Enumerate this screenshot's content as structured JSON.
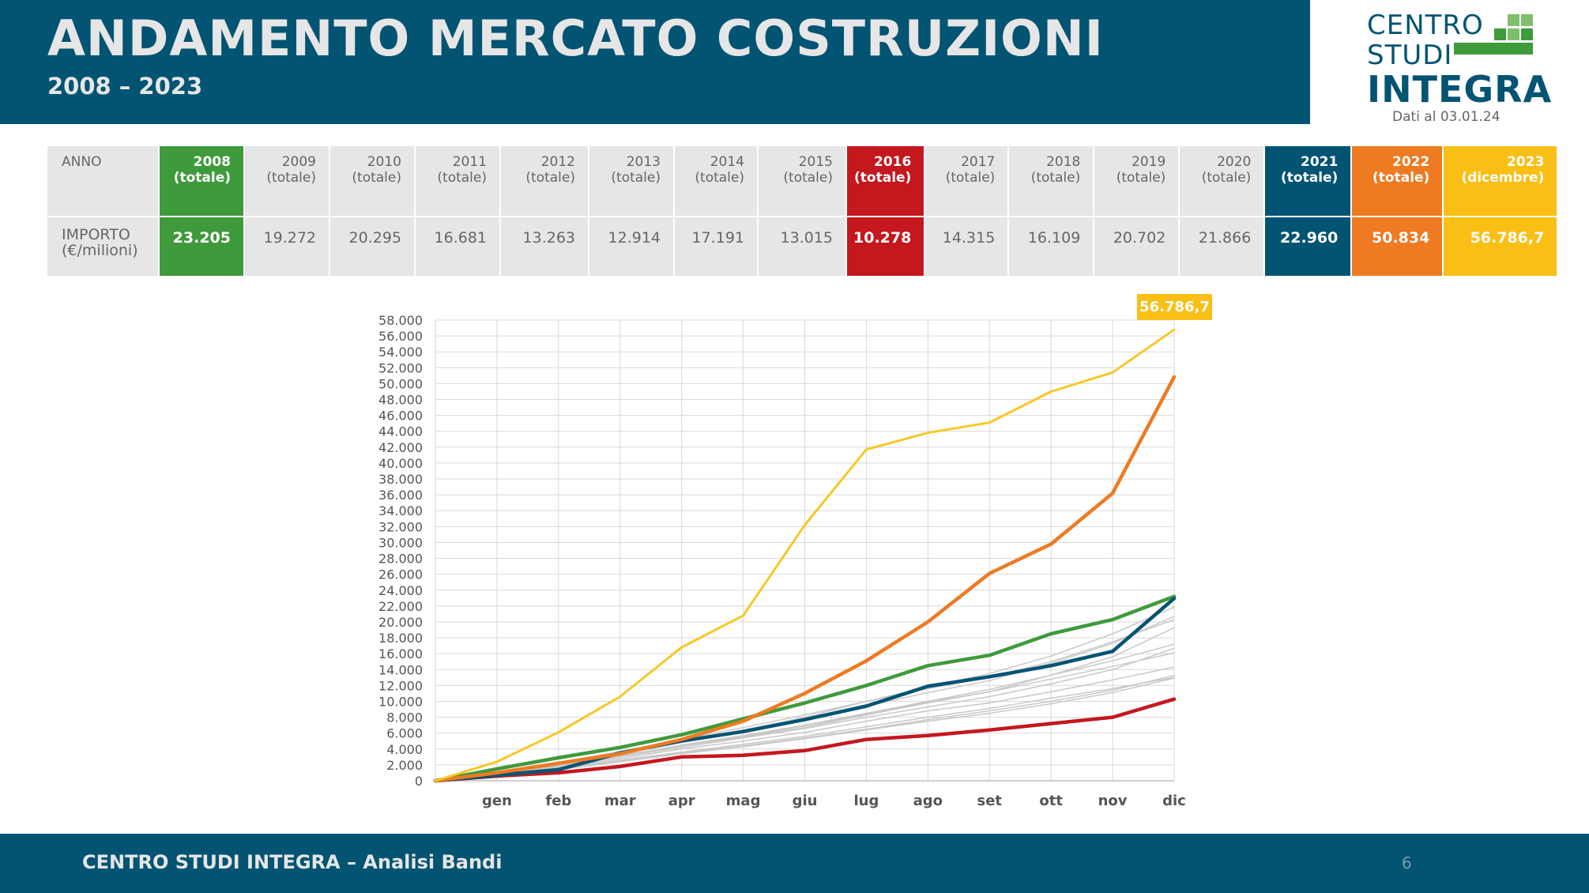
{
  "header": {
    "title": "ANDAMENTO MERCATO COSTRUZIONI",
    "subtitle": "2008 – 2023"
  },
  "logo": {
    "line1": "CENTRO",
    "line2": "STUDI",
    "line3": "INTEGRA",
    "date": "Dati al 03.01.24"
  },
  "table": {
    "label_year": "ANNO",
    "label_amount_1": "IMPORTO",
    "label_amount_2": "(€/milioni)",
    "columns": [
      {
        "year": "2008",
        "note": "(totale)",
        "value": "23.205"
      },
      {
        "year": "2009",
        "note": "(totale)",
        "value": "19.272"
      },
      {
        "year": "2010",
        "note": "(totale)",
        "value": "20.295"
      },
      {
        "year": "2011",
        "note": "(totale)",
        "value": "16.681"
      },
      {
        "year": "2012",
        "note": "(totale)",
        "value": "13.263"
      },
      {
        "year": "2013",
        "note": "(totale)",
        "value": "12.914"
      },
      {
        "year": "2014",
        "note": "(totale)",
        "value": "17.191"
      },
      {
        "year": "2015",
        "note": "(totale)",
        "value": "13.015"
      },
      {
        "year": "2016",
        "note": "(totale)",
        "value": "10.278"
      },
      {
        "year": "2017",
        "note": "(totale)",
        "value": "14.315"
      },
      {
        "year": "2018",
        "note": "(totale)",
        "value": "16.109"
      },
      {
        "year": "2019",
        "note": "(totale)",
        "value": "20.702"
      },
      {
        "year": "2020",
        "note": "(totale)",
        "value": "21.866"
      },
      {
        "year": "2021",
        "note": "(totale)",
        "value": "22.960"
      },
      {
        "year": "2022",
        "note": "(totale)",
        "value": "50.834"
      },
      {
        "year": "2023",
        "note": "(dicembre)",
        "value": "56.786,7"
      }
    ]
  },
  "chart_data": {
    "type": "line",
    "title": "",
    "xlabel": "",
    "ylabel": "",
    "categories": [
      "",
      "gen",
      "feb",
      "mar",
      "apr",
      "mag",
      "giu",
      "lug",
      "ago",
      "set",
      "ott",
      "nov",
      "dic"
    ],
    "ylim": [
      0,
      58000
    ],
    "ytick_step": 2000,
    "ytick_labels": [
      "0",
      "2.000",
      "4.000",
      "6.000",
      "8.000",
      "10.000",
      "12.000",
      "14.000",
      "16.000",
      "18.000",
      "20.000",
      "22.000",
      "24.000",
      "26.000",
      "28.000",
      "30.000",
      "32.000",
      "34.000",
      "36.000",
      "38.000",
      "40.000",
      "42.000",
      "44.000",
      "46.000",
      "48.000",
      "50.000",
      "52.000",
      "54.000",
      "56.000",
      "58.000"
    ],
    "grid": true,
    "callout": {
      "series": "2023",
      "label": "56.786,7"
    },
    "series": [
      {
        "name": "2009",
        "color": "#c8c8c8",
        "highlight": false,
        "values": [
          0,
          900,
          2000,
          3200,
          4400,
          5500,
          6700,
          8300,
          9800,
          11200,
          13300,
          15600,
          19272
        ]
      },
      {
        "name": "2010",
        "color": "#c8c8c8",
        "highlight": false,
        "values": [
          0,
          1000,
          2200,
          3600,
          5000,
          6400,
          8000,
          10000,
          11600,
          13000,
          15000,
          17500,
          20295
        ]
      },
      {
        "name": "2011",
        "color": "#c8c8c8",
        "highlight": false,
        "values": [
          0,
          800,
          1800,
          3000,
          4200,
          5400,
          6600,
          8000,
          9300,
          10600,
          12200,
          14000,
          16681
        ]
      },
      {
        "name": "2012",
        "color": "#c8c8c8",
        "highlight": false,
        "values": [
          0,
          700,
          1500,
          2500,
          3500,
          4400,
          5400,
          6500,
          7700,
          8800,
          10000,
          11400,
          13263
        ]
      },
      {
        "name": "2013",
        "color": "#c8c8c8",
        "highlight": false,
        "values": [
          0,
          600,
          1400,
          2400,
          3400,
          4300,
          5300,
          6400,
          7500,
          8500,
          9700,
          11100,
          12914
        ]
      },
      {
        "name": "2014",
        "color": "#c8c8c8",
        "highlight": false,
        "values": [
          0,
          800,
          1900,
          3100,
          4500,
          5700,
          7000,
          8500,
          10000,
          11500,
          13300,
          15100,
          17191
        ]
      },
      {
        "name": "2015",
        "color": "#c8c8c8",
        "highlight": false,
        "values": [
          0,
          700,
          1600,
          2600,
          3600,
          4600,
          5600,
          6800,
          8000,
          9100,
          10400,
          11600,
          13015
        ]
      },
      {
        "name": "2017",
        "color": "#c8c8c8",
        "highlight": false,
        "values": [
          0,
          700,
          1700,
          2800,
          4000,
          5000,
          6100,
          7500,
          8800,
          9800,
          11200,
          12700,
          14315
        ]
      },
      {
        "name": "2018",
        "color": "#c8c8c8",
        "highlight": false,
        "values": [
          0,
          800,
          1900,
          3100,
          4400,
          5600,
          6900,
          8400,
          9900,
          11200,
          12800,
          14400,
          16109
        ]
      },
      {
        "name": "2019",
        "color": "#c8c8c8",
        "highlight": false,
        "values": [
          0,
          900,
          2100,
          3400,
          4900,
          6300,
          7700,
          9400,
          11100,
          12600,
          14800,
          17300,
          20702
        ]
      },
      {
        "name": "2020",
        "color": "#c8c8c8",
        "highlight": false,
        "values": [
          0,
          1000,
          2300,
          3700,
          5200,
          6700,
          8300,
          10000,
          11800,
          13500,
          15700,
          18500,
          21866
        ]
      },
      {
        "name": "2016",
        "color": "#c5171e",
        "highlight": true,
        "values": [
          0,
          600,
          1000,
          1800,
          3000,
          3200,
          3800,
          5200,
          5700,
          6400,
          7200,
          8000,
          10278
        ]
      },
      {
        "name": "2008",
        "color": "#3f9a3c",
        "highlight": true,
        "values": [
          0,
          1500,
          2900,
          4200,
          5800,
          7800,
          9800,
          12000,
          14500,
          15800,
          18500,
          20300,
          23205
        ]
      },
      {
        "name": "2021",
        "color": "#035473",
        "highlight": true,
        "values": [
          0,
          700,
          1400,
          3500,
          5000,
          6200,
          7700,
          9400,
          11900,
          13100,
          14500,
          16300,
          22960
        ]
      },
      {
        "name": "2022",
        "color": "#ee7a22",
        "highlight": true,
        "values": [
          0,
          1000,
          2200,
          3400,
          5200,
          7500,
          11000,
          15100,
          20000,
          26100,
          29800,
          36200,
          50834
        ]
      },
      {
        "name": "2023",
        "color": "#f7c826",
        "highlight": true,
        "values": [
          0,
          2400,
          6100,
          10600,
          16800,
          20800,
          32200,
          41700,
          43800,
          45100,
          49000,
          51400,
          56787
        ]
      }
    ]
  },
  "footer": {
    "text": "CENTRO STUDI INTEGRA – Analisi Bandi",
    "page": "6"
  }
}
